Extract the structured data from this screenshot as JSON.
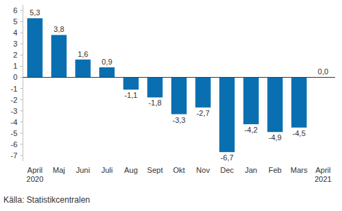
{
  "chart_data": {
    "type": "bar",
    "categories": [
      "April\n2020",
      "Maj",
      "Juni",
      "Juli",
      "Aug",
      "Sept",
      "Okt",
      "Nov",
      "Dec",
      "Jan",
      "Feb",
      "Mars",
      "April\n2021"
    ],
    "values": [
      5.3,
      3.8,
      1.6,
      0.9,
      -1.1,
      -1.8,
      -3.3,
      -2.7,
      -6.7,
      -4.2,
      -4.9,
      -4.5,
      0.0
    ],
    "value_labels": [
      "5,3",
      "3,8",
      "1,6",
      "0,9",
      "-1,1",
      "-1,8",
      "-3,3",
      "-2,7",
      "-6,7",
      "-4,2",
      "-4,9",
      "-4,5",
      "0,0"
    ],
    "data_labels": true,
    "color": "#0a6fb0",
    "ylim": [
      -7.5,
      6.5
    ],
    "yticks": [
      -7,
      -6,
      -5,
      -4,
      -3,
      -2,
      -1,
      0,
      1,
      2,
      3,
      4,
      5,
      6
    ],
    "grid": false,
    "source": "Källa: Statistikcentralen"
  }
}
